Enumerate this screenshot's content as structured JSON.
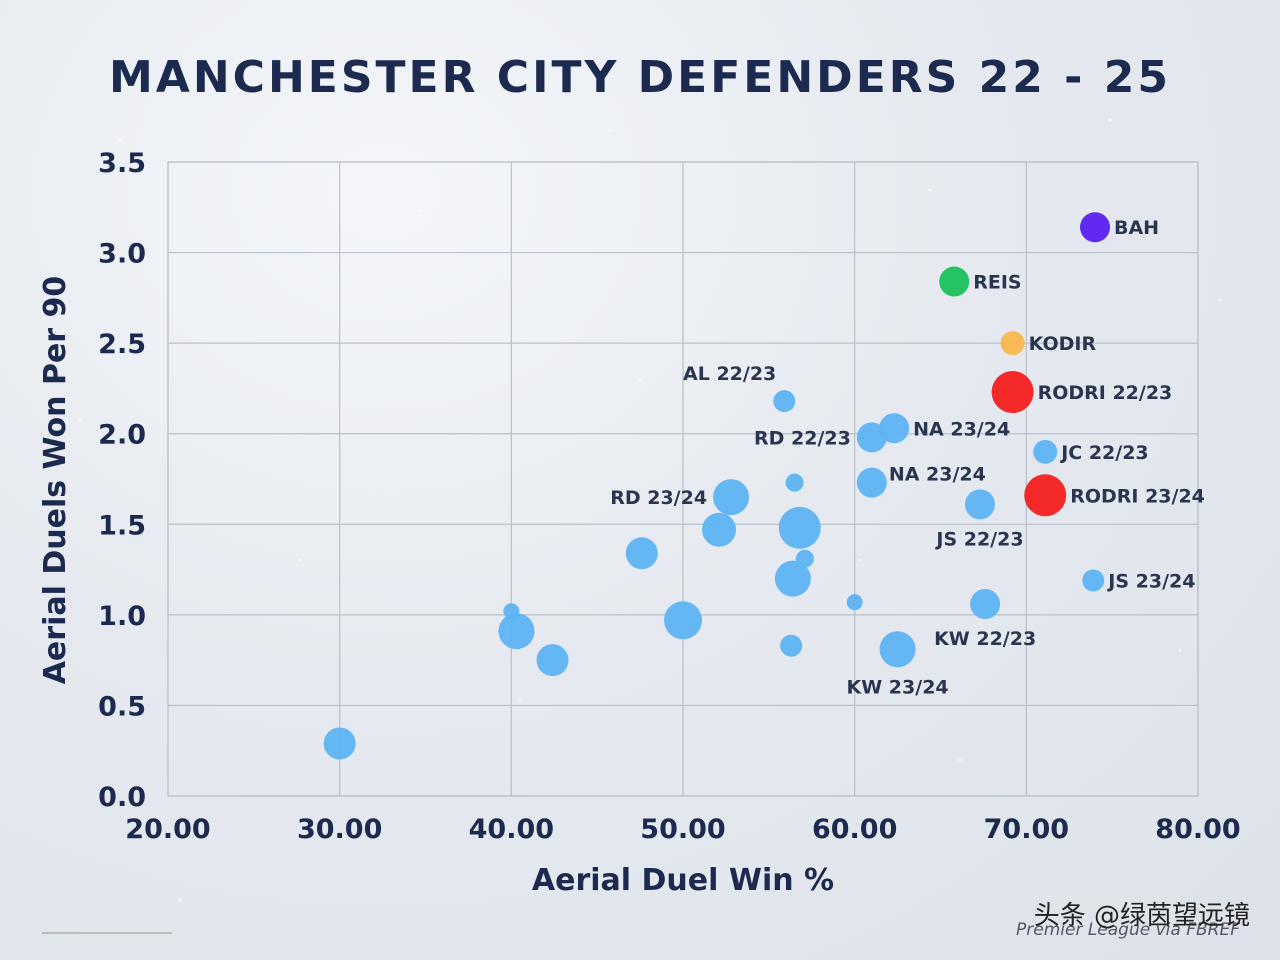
{
  "watermark": "头条 @绿茵望远镜",
  "source": "Premier League via FBREF",
  "chart_data": {
    "type": "scatter",
    "title": "MANCHESTER CITY DEFENDERS 22 - 25",
    "xlabel": "Aerial Duel Win %",
    "ylabel": "Aerial Duels Won Per 90",
    "xlim": [
      20,
      80
    ],
    "ylim": [
      0,
      3.5
    ],
    "xticks": [
      "20.00",
      "30.00",
      "40.00",
      "50.00",
      "60.00",
      "70.00",
      "80.00"
    ],
    "yticks": [
      "0.0",
      "0.5",
      "1.0",
      "1.5",
      "2.0",
      "2.5",
      "3.0",
      "3.5"
    ],
    "grid": true,
    "colors": {
      "default": "#5db4f2",
      "BAH": "#5a1ff0",
      "REIS": "#19c25a",
      "KODIR": "#f9b84c",
      "RODRI": "#f3201d"
    },
    "points": [
      {
        "label": "BAH",
        "x": 74.0,
        "y": 3.14,
        "size": 15,
        "color": "#5a1ff0",
        "label_pos": "right"
      },
      {
        "label": "REIS",
        "x": 65.8,
        "y": 2.84,
        "size": 15,
        "color": "#19c25a",
        "label_pos": "right"
      },
      {
        "label": "KODIR",
        "x": 69.2,
        "y": 2.5,
        "size": 12,
        "color": "#f9b84c",
        "label_pos": "right"
      },
      {
        "label": "RODRI 22/23",
        "x": 69.2,
        "y": 2.23,
        "size": 21,
        "color": "#f3201d",
        "label_pos": "right"
      },
      {
        "label": "RODRI 23/24",
        "x": 71.1,
        "y": 1.66,
        "size": 21,
        "color": "#f3201d",
        "label_pos": "right"
      },
      {
        "label": "AL 22/23",
        "x": 55.9,
        "y": 2.18,
        "size": 11,
        "color": "#5db4f2",
        "label_pos": "above-left"
      },
      {
        "label": "NA 23/24",
        "x": 62.3,
        "y": 2.03,
        "size": 15,
        "color": "#5db4f2",
        "label_pos": "right"
      },
      {
        "label": "RD 22/23",
        "x": 61.0,
        "y": 1.98,
        "size": 15,
        "color": "#5db4f2",
        "label_pos": "left"
      },
      {
        "label": "JC 22/23",
        "x": 71.1,
        "y": 1.9,
        "size": 12,
        "color": "#5db4f2",
        "label_pos": "right"
      },
      {
        "label": "NA 23/24",
        "x": 61.0,
        "y": 1.73,
        "size": 15,
        "color": "#5db4f2",
        "label_pos": "above-right"
      },
      {
        "label": "RD 23/24",
        "x": 52.8,
        "y": 1.65,
        "size": 18,
        "color": "#5db4f2",
        "label_pos": "left"
      },
      {
        "label": "JS 22/23",
        "x": 67.3,
        "y": 1.61,
        "size": 15,
        "color": "#5db4f2",
        "label_pos": "below"
      },
      {
        "label": "JS 23/24",
        "x": 73.9,
        "y": 1.19,
        "size": 11,
        "color": "#5db4f2",
        "label_pos": "right"
      },
      {
        "label": "KW 22/23",
        "x": 67.6,
        "y": 1.06,
        "size": 15,
        "color": "#5db4f2",
        "label_pos": "below"
      },
      {
        "label": "KW 23/24",
        "x": 62.5,
        "y": 0.81,
        "size": 18,
        "color": "#5db4f2",
        "label_pos": "below"
      },
      {
        "label": "",
        "x": 56.5,
        "y": 1.73,
        "size": 9,
        "color": "#5db4f2"
      },
      {
        "label": "",
        "x": 56.8,
        "y": 1.48,
        "size": 21,
        "color": "#5db4f2"
      },
      {
        "label": "",
        "x": 52.1,
        "y": 1.47,
        "size": 17,
        "color": "#5db4f2"
      },
      {
        "label": "",
        "x": 47.6,
        "y": 1.34,
        "size": 16,
        "color": "#5db4f2"
      },
      {
        "label": "",
        "x": 57.1,
        "y": 1.31,
        "size": 9,
        "color": "#5db4f2"
      },
      {
        "label": "",
        "x": 56.4,
        "y": 1.2,
        "size": 18,
        "color": "#5db4f2"
      },
      {
        "label": "",
        "x": 60.0,
        "y": 1.07,
        "size": 8,
        "color": "#5db4f2"
      },
      {
        "label": "",
        "x": 40.0,
        "y": 1.02,
        "size": 8,
        "color": "#5db4f2"
      },
      {
        "label": "",
        "x": 50.0,
        "y": 0.97,
        "size": 19,
        "color": "#5db4f2"
      },
      {
        "label": "",
        "x": 40.3,
        "y": 0.91,
        "size": 18,
        "color": "#5db4f2"
      },
      {
        "label": "",
        "x": 56.3,
        "y": 0.83,
        "size": 11,
        "color": "#5db4f2"
      },
      {
        "label": "",
        "x": 42.4,
        "y": 0.75,
        "size": 16,
        "color": "#5db4f2"
      },
      {
        "label": "",
        "x": 30.0,
        "y": 0.29,
        "size": 16,
        "color": "#5db4f2"
      }
    ]
  }
}
